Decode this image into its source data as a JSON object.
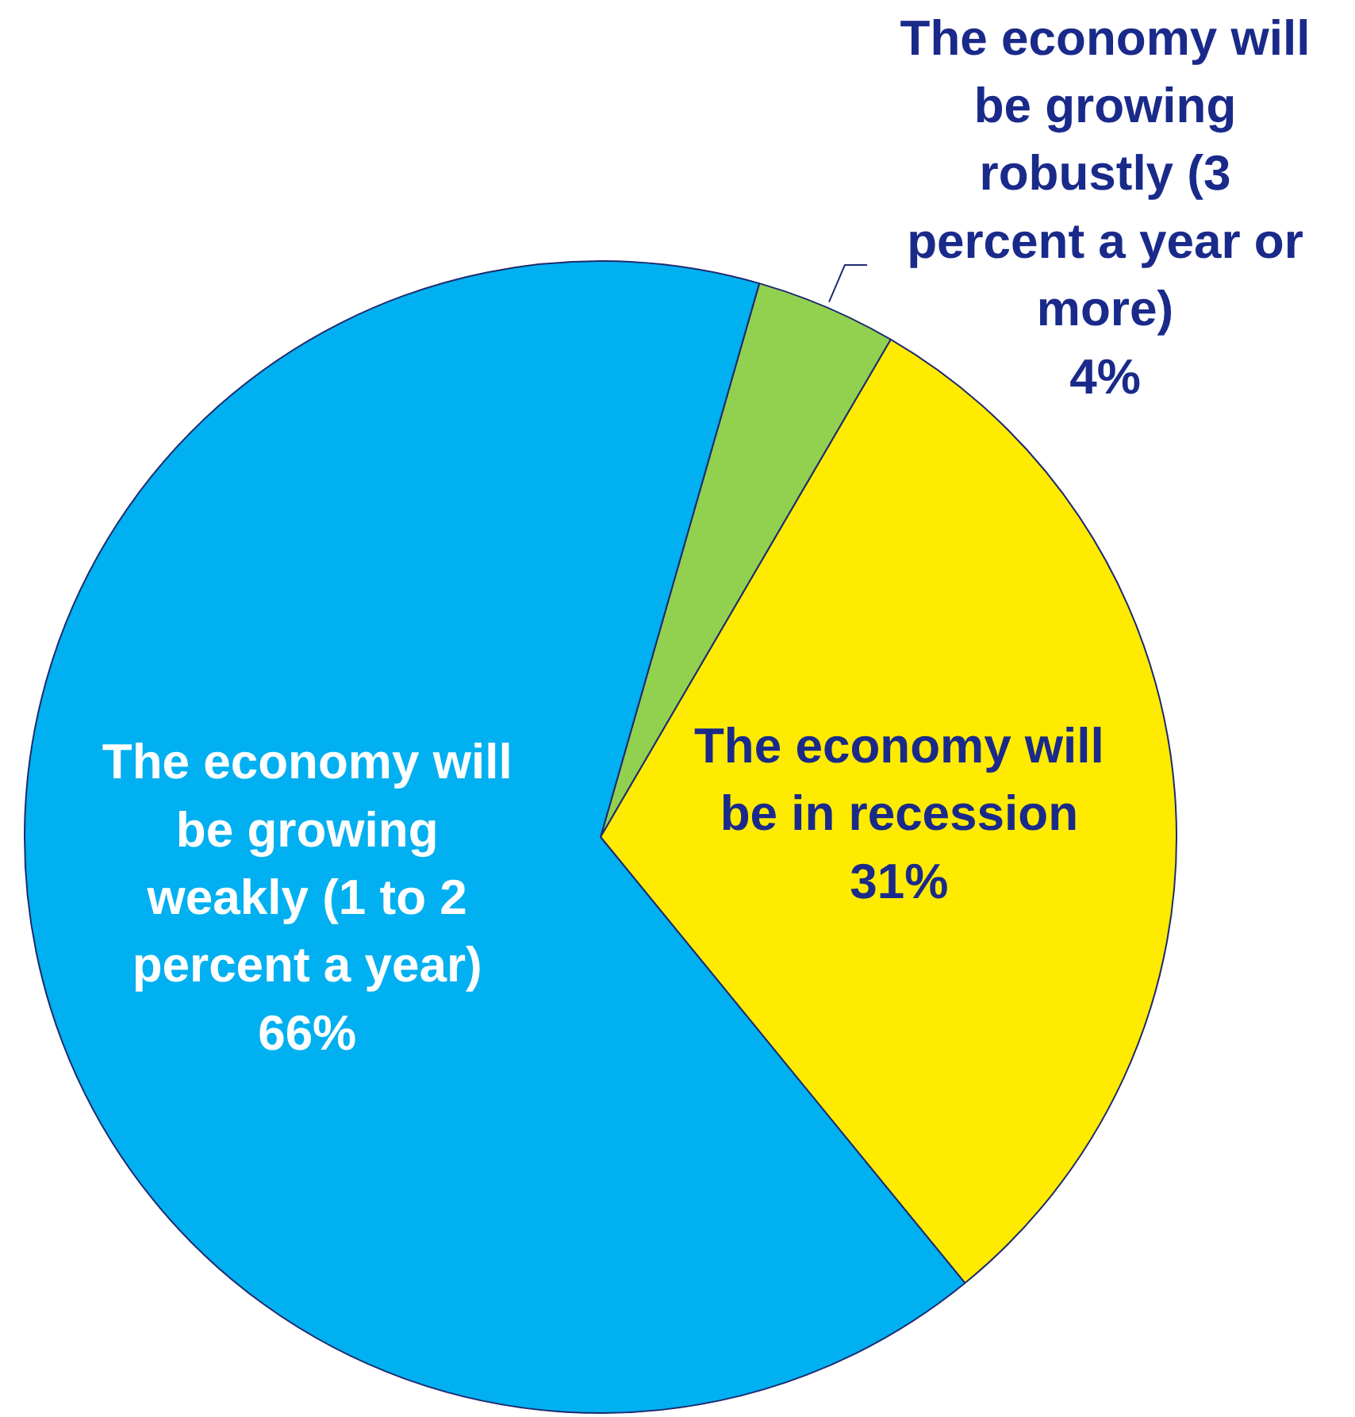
{
  "chart_data": {
    "type": "pie",
    "categories": [
      "The economy will\nbe growing\nrobustly (3\npercent a year or\nmore)",
      "The economy will\nbe in recession",
      "The economy will\nbe growing\nweakly (1 to 2\npercent a year)"
    ],
    "values": [
      4,
      31,
      66
    ],
    "colors": [
      "#92d050",
      "#ffeb00",
      "#00b0f0"
    ],
    "value_labels": [
      "4%",
      "31%",
      "66%"
    ]
  }
}
